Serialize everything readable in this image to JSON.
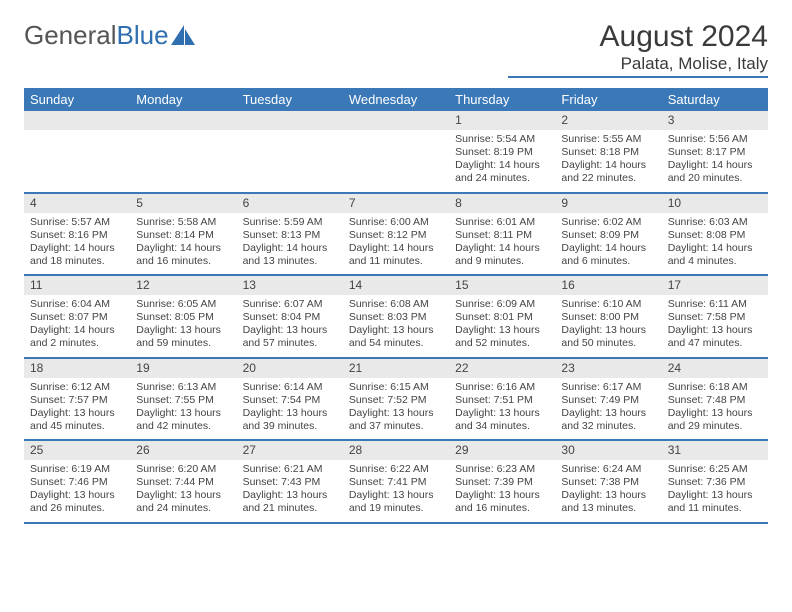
{
  "logo": {
    "text1": "General",
    "text2": "Blue"
  },
  "title": {
    "month": "August 2024",
    "location": "Palata, Molise, Italy"
  },
  "colors": {
    "header_bg": "#3a78b8",
    "header_text": "#ffffff",
    "daynum_bg": "#e9e9e9",
    "rule": "#3a78b8",
    "text": "#444444"
  },
  "day_headers": [
    "Sunday",
    "Monday",
    "Tuesday",
    "Wednesday",
    "Thursday",
    "Friday",
    "Saturday"
  ],
  "weeks": [
    [
      {
        "n": "",
        "sr": "",
        "ss": "",
        "dl": ""
      },
      {
        "n": "",
        "sr": "",
        "ss": "",
        "dl": ""
      },
      {
        "n": "",
        "sr": "",
        "ss": "",
        "dl": ""
      },
      {
        "n": "",
        "sr": "",
        "ss": "",
        "dl": ""
      },
      {
        "n": "1",
        "sr": "Sunrise: 5:54 AM",
        "ss": "Sunset: 8:19 PM",
        "dl": "Daylight: 14 hours and 24 minutes."
      },
      {
        "n": "2",
        "sr": "Sunrise: 5:55 AM",
        "ss": "Sunset: 8:18 PM",
        "dl": "Daylight: 14 hours and 22 minutes."
      },
      {
        "n": "3",
        "sr": "Sunrise: 5:56 AM",
        "ss": "Sunset: 8:17 PM",
        "dl": "Daylight: 14 hours and 20 minutes."
      }
    ],
    [
      {
        "n": "4",
        "sr": "Sunrise: 5:57 AM",
        "ss": "Sunset: 8:16 PM",
        "dl": "Daylight: 14 hours and 18 minutes."
      },
      {
        "n": "5",
        "sr": "Sunrise: 5:58 AM",
        "ss": "Sunset: 8:14 PM",
        "dl": "Daylight: 14 hours and 16 minutes."
      },
      {
        "n": "6",
        "sr": "Sunrise: 5:59 AM",
        "ss": "Sunset: 8:13 PM",
        "dl": "Daylight: 14 hours and 13 minutes."
      },
      {
        "n": "7",
        "sr": "Sunrise: 6:00 AM",
        "ss": "Sunset: 8:12 PM",
        "dl": "Daylight: 14 hours and 11 minutes."
      },
      {
        "n": "8",
        "sr": "Sunrise: 6:01 AM",
        "ss": "Sunset: 8:11 PM",
        "dl": "Daylight: 14 hours and 9 minutes."
      },
      {
        "n": "9",
        "sr": "Sunrise: 6:02 AM",
        "ss": "Sunset: 8:09 PM",
        "dl": "Daylight: 14 hours and 6 minutes."
      },
      {
        "n": "10",
        "sr": "Sunrise: 6:03 AM",
        "ss": "Sunset: 8:08 PM",
        "dl": "Daylight: 14 hours and 4 minutes."
      }
    ],
    [
      {
        "n": "11",
        "sr": "Sunrise: 6:04 AM",
        "ss": "Sunset: 8:07 PM",
        "dl": "Daylight: 14 hours and 2 minutes."
      },
      {
        "n": "12",
        "sr": "Sunrise: 6:05 AM",
        "ss": "Sunset: 8:05 PM",
        "dl": "Daylight: 13 hours and 59 minutes."
      },
      {
        "n": "13",
        "sr": "Sunrise: 6:07 AM",
        "ss": "Sunset: 8:04 PM",
        "dl": "Daylight: 13 hours and 57 minutes."
      },
      {
        "n": "14",
        "sr": "Sunrise: 6:08 AM",
        "ss": "Sunset: 8:03 PM",
        "dl": "Daylight: 13 hours and 54 minutes."
      },
      {
        "n": "15",
        "sr": "Sunrise: 6:09 AM",
        "ss": "Sunset: 8:01 PM",
        "dl": "Daylight: 13 hours and 52 minutes."
      },
      {
        "n": "16",
        "sr": "Sunrise: 6:10 AM",
        "ss": "Sunset: 8:00 PM",
        "dl": "Daylight: 13 hours and 50 minutes."
      },
      {
        "n": "17",
        "sr": "Sunrise: 6:11 AM",
        "ss": "Sunset: 7:58 PM",
        "dl": "Daylight: 13 hours and 47 minutes."
      }
    ],
    [
      {
        "n": "18",
        "sr": "Sunrise: 6:12 AM",
        "ss": "Sunset: 7:57 PM",
        "dl": "Daylight: 13 hours and 45 minutes."
      },
      {
        "n": "19",
        "sr": "Sunrise: 6:13 AM",
        "ss": "Sunset: 7:55 PM",
        "dl": "Daylight: 13 hours and 42 minutes."
      },
      {
        "n": "20",
        "sr": "Sunrise: 6:14 AM",
        "ss": "Sunset: 7:54 PM",
        "dl": "Daylight: 13 hours and 39 minutes."
      },
      {
        "n": "21",
        "sr": "Sunrise: 6:15 AM",
        "ss": "Sunset: 7:52 PM",
        "dl": "Daylight: 13 hours and 37 minutes."
      },
      {
        "n": "22",
        "sr": "Sunrise: 6:16 AM",
        "ss": "Sunset: 7:51 PM",
        "dl": "Daylight: 13 hours and 34 minutes."
      },
      {
        "n": "23",
        "sr": "Sunrise: 6:17 AM",
        "ss": "Sunset: 7:49 PM",
        "dl": "Daylight: 13 hours and 32 minutes."
      },
      {
        "n": "24",
        "sr": "Sunrise: 6:18 AM",
        "ss": "Sunset: 7:48 PM",
        "dl": "Daylight: 13 hours and 29 minutes."
      }
    ],
    [
      {
        "n": "25",
        "sr": "Sunrise: 6:19 AM",
        "ss": "Sunset: 7:46 PM",
        "dl": "Daylight: 13 hours and 26 minutes."
      },
      {
        "n": "26",
        "sr": "Sunrise: 6:20 AM",
        "ss": "Sunset: 7:44 PM",
        "dl": "Daylight: 13 hours and 24 minutes."
      },
      {
        "n": "27",
        "sr": "Sunrise: 6:21 AM",
        "ss": "Sunset: 7:43 PM",
        "dl": "Daylight: 13 hours and 21 minutes."
      },
      {
        "n": "28",
        "sr": "Sunrise: 6:22 AM",
        "ss": "Sunset: 7:41 PM",
        "dl": "Daylight: 13 hours and 19 minutes."
      },
      {
        "n": "29",
        "sr": "Sunrise: 6:23 AM",
        "ss": "Sunset: 7:39 PM",
        "dl": "Daylight: 13 hours and 16 minutes."
      },
      {
        "n": "30",
        "sr": "Sunrise: 6:24 AM",
        "ss": "Sunset: 7:38 PM",
        "dl": "Daylight: 13 hours and 13 minutes."
      },
      {
        "n": "31",
        "sr": "Sunrise: 6:25 AM",
        "ss": "Sunset: 7:36 PM",
        "dl": "Daylight: 13 hours and 11 minutes."
      }
    ]
  ]
}
